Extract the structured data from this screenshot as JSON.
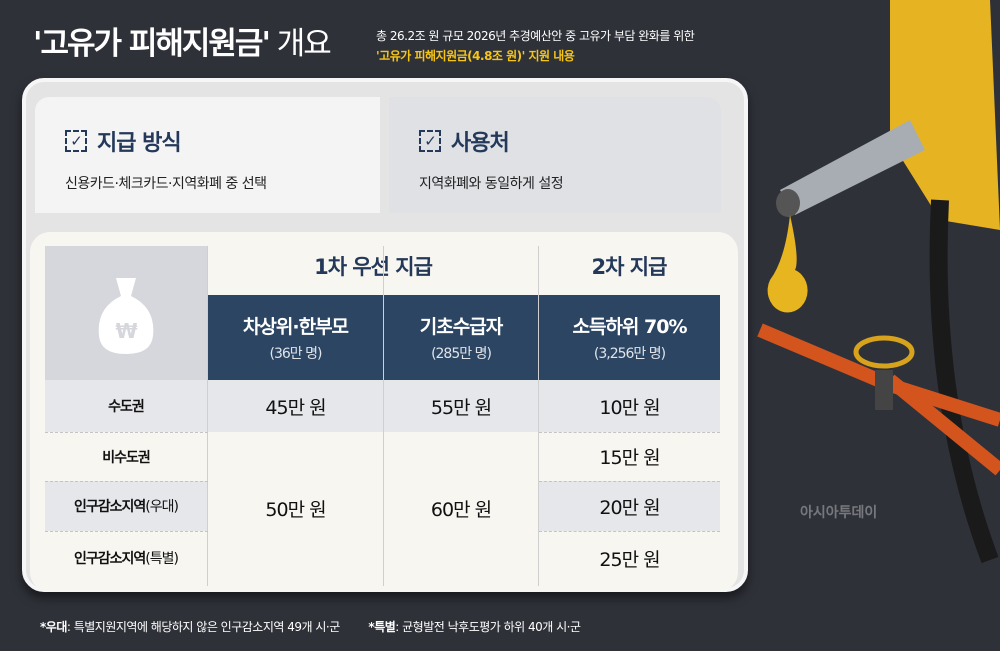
{
  "title": {
    "main": "'고유가 피해지원금'",
    "suffix": " 개요"
  },
  "subtitle": {
    "line1": "총 26.2조 원 규모 2026년 추경예산안 중 고유가 부담 완화를 위한",
    "line2": "'고유가 피해지원금(4.8조 원)' 지원 내용"
  },
  "method": {
    "heading": "지급 방식",
    "text": "신용카드·체크카드·지역화폐 중 선택"
  },
  "usage": {
    "heading": "사용처",
    "text": "지역화폐와 동일하게 설정"
  },
  "table": {
    "group1": "1차 우선 지급",
    "group2": "2차 지급",
    "columns": [
      {
        "title": "차상위·한부모",
        "sub": "(36만 명)"
      },
      {
        "title": "기초수급자",
        "sub": "(285만 명)"
      },
      {
        "title": "소득하위 70%",
        "sub": "(3,256만 명)"
      }
    ],
    "rows": [
      {
        "label": "수도권",
        "note": "",
        "c1": "45만 원",
        "c2": "55만 원",
        "c3": "10만 원"
      },
      {
        "label": "비수도권",
        "note": "",
        "c3": "15만 원"
      },
      {
        "label": "인구감소지역",
        "note": "(우대)",
        "c3": "20만 원"
      },
      {
        "label": "인구감소지역",
        "note": "(특별)",
        "c3": "25만 원"
      }
    ],
    "merged_c1": "50만 원",
    "merged_c2": "60만 원",
    "icon": "money-bag-won-icon"
  },
  "footnotes": [
    {
      "key": "*우대",
      "text": ": 특별지원지역에 해당하지 않은 인구감소지역 49개 시·군"
    },
    {
      "key": "*특별",
      "text": ": 균형발전 낙후도평가 하위 40개 시·군"
    }
  ],
  "watermark": "아시아투데이",
  "colors": {
    "navy": "#2c4563",
    "yellow": "#f5c518",
    "background": "#2f3139"
  }
}
